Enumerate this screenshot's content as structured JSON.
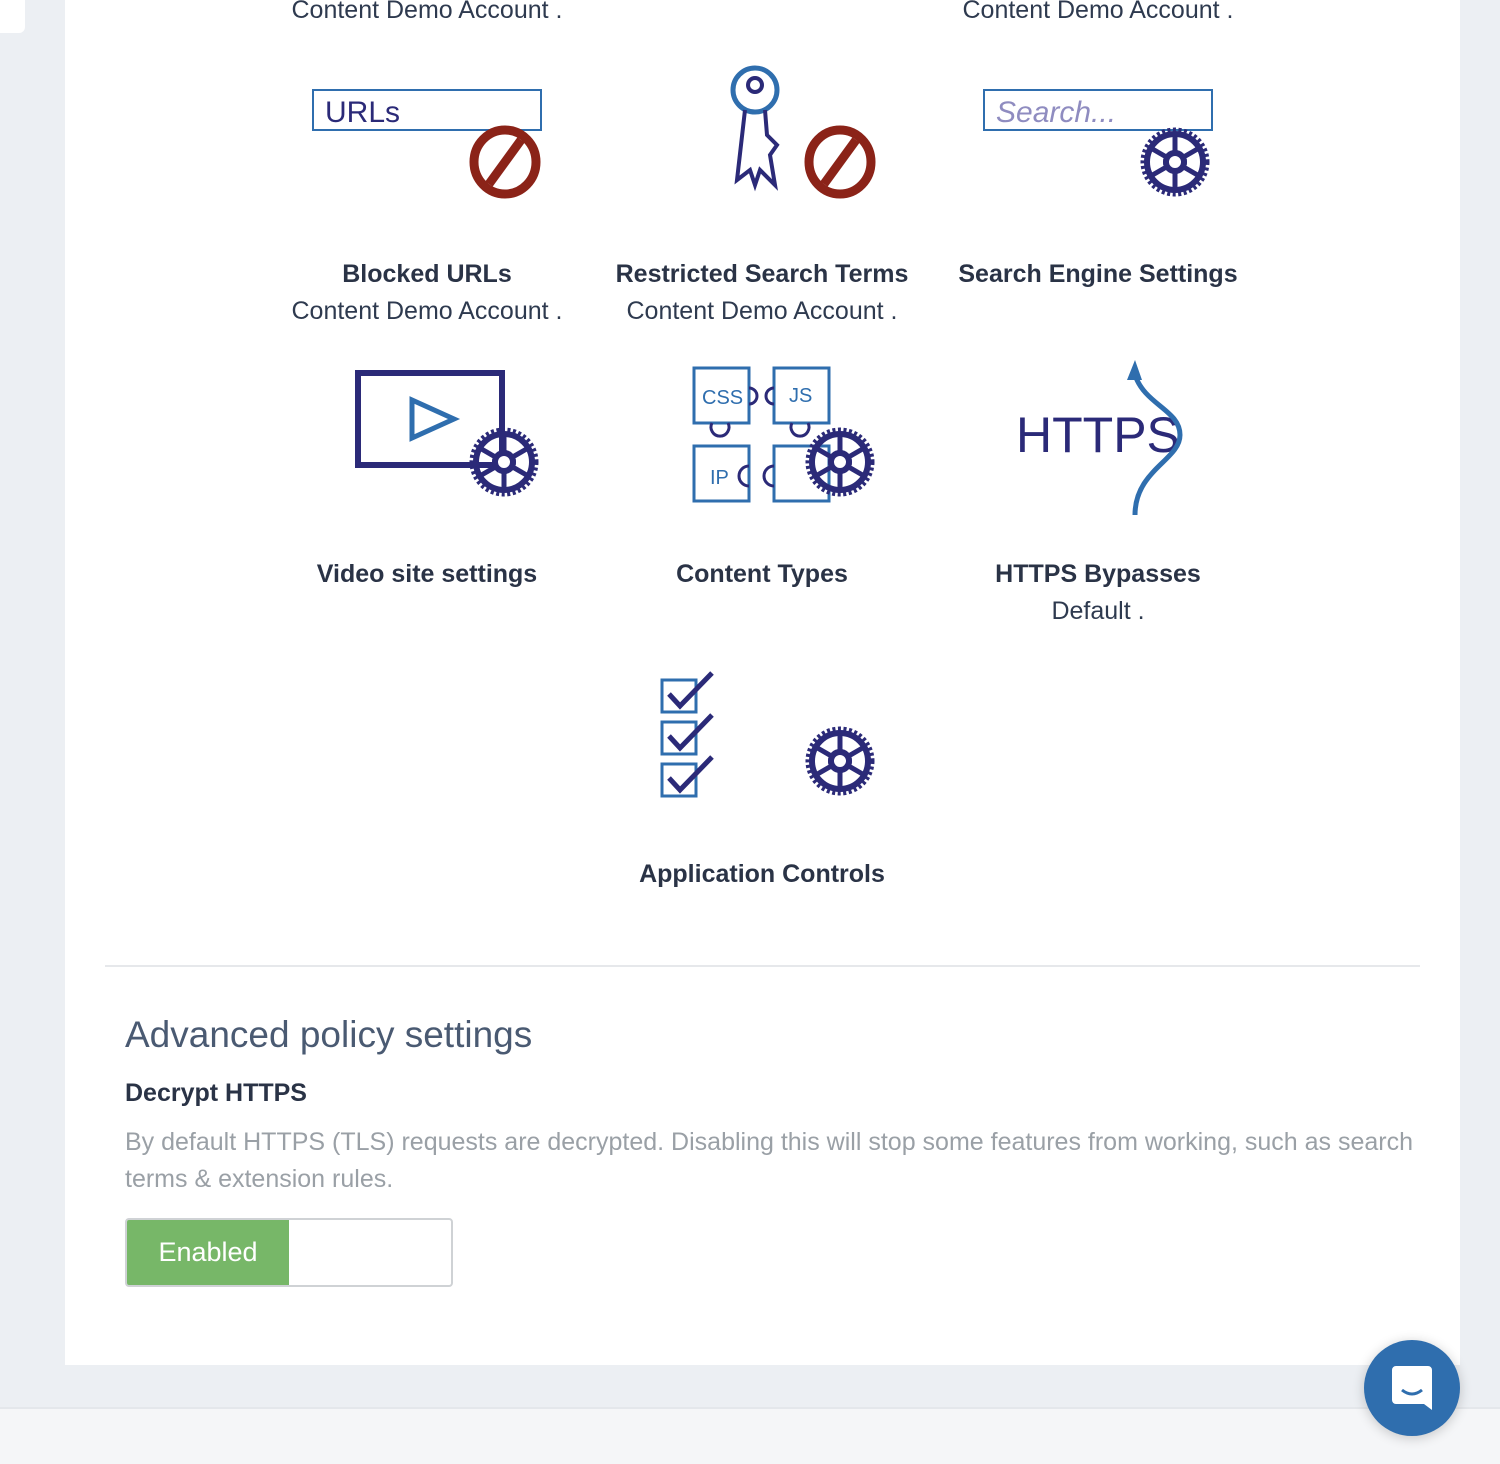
{
  "tiles": [
    {
      "title": "",
      "subtitle": "Content Demo Account .",
      "icon": "partial-tile"
    },
    {
      "title": "",
      "subtitle": "Content Demo Account .",
      "icon": "partial-tile"
    },
    {
      "title": "Blocked URLs",
      "subtitle": "Content Demo Account .",
      "icon": "blocked-urls-icon",
      "icon_text": "URLs"
    },
    {
      "title": "Restricted Search Terms",
      "subtitle": "Content Demo Account .",
      "icon": "key-blocked-icon"
    },
    {
      "title": "Search Engine Settings",
      "subtitle": "",
      "icon": "search-gear-icon",
      "icon_text": "Search..."
    },
    {
      "title": "Video site settings",
      "subtitle": "",
      "icon": "video-gear-icon"
    },
    {
      "title": "Content Types",
      "subtitle": "",
      "icon": "puzzle-gear-icon",
      "icon_labels": [
        "CSS",
        "JS",
        "IP"
      ]
    },
    {
      "title": "HTTPS Bypasses",
      "subtitle": "Default .",
      "icon": "https-bypass-icon",
      "icon_text": "HTTPS"
    },
    {
      "title": "Application Controls",
      "subtitle": "",
      "icon": "checklist-gear-icon"
    }
  ],
  "advanced": {
    "heading": "Advanced policy settings",
    "decrypt_title": "Decrypt HTTPS",
    "decrypt_desc": "By default HTTPS (TLS) requests are decrypted. Disabling this will stop some features from working, such as search terms & extension rules.",
    "toggle_label": "Enabled",
    "toggle_state": true
  },
  "colors": {
    "brand": "#2f6eae",
    "enabled": "#77b768",
    "block": "#8b2318",
    "icon_navy": "#2b2a78"
  }
}
